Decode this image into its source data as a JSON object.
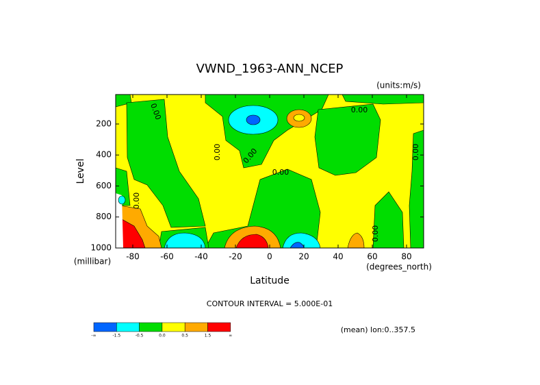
{
  "chart_data": {
    "type": "contour",
    "title": "VWND_1963-ANN_NCEP",
    "units": "(units:m/s)",
    "x_label": "Latitude",
    "x_units": "(degrees_north)",
    "y_label": "Level",
    "y_units": "(millibar)",
    "xlim": [
      -90,
      90
    ],
    "xticks": [
      -80,
      -60,
      -40,
      -20,
      0,
      20,
      40,
      60,
      80
    ],
    "ylim": [
      1000,
      10
    ],
    "yticks": [
      200,
      400,
      600,
      800,
      1000
    ],
    "contour_label": "0.00",
    "contour_interval": "CONTOUR INTERVAL = 5.000E-01",
    "averaging": "(mean) lon:0..357.5",
    "colorbar": {
      "colors": [
        "#0066ff",
        "#00ffff",
        "#00dd00",
        "#ffff00",
        "#ffaa00",
        "#ff0000"
      ],
      "labels": [
        "-∞",
        "-1.5",
        "-0.5",
        "0.0",
        "0.5",
        "1.5",
        "∞"
      ]
    }
  }
}
